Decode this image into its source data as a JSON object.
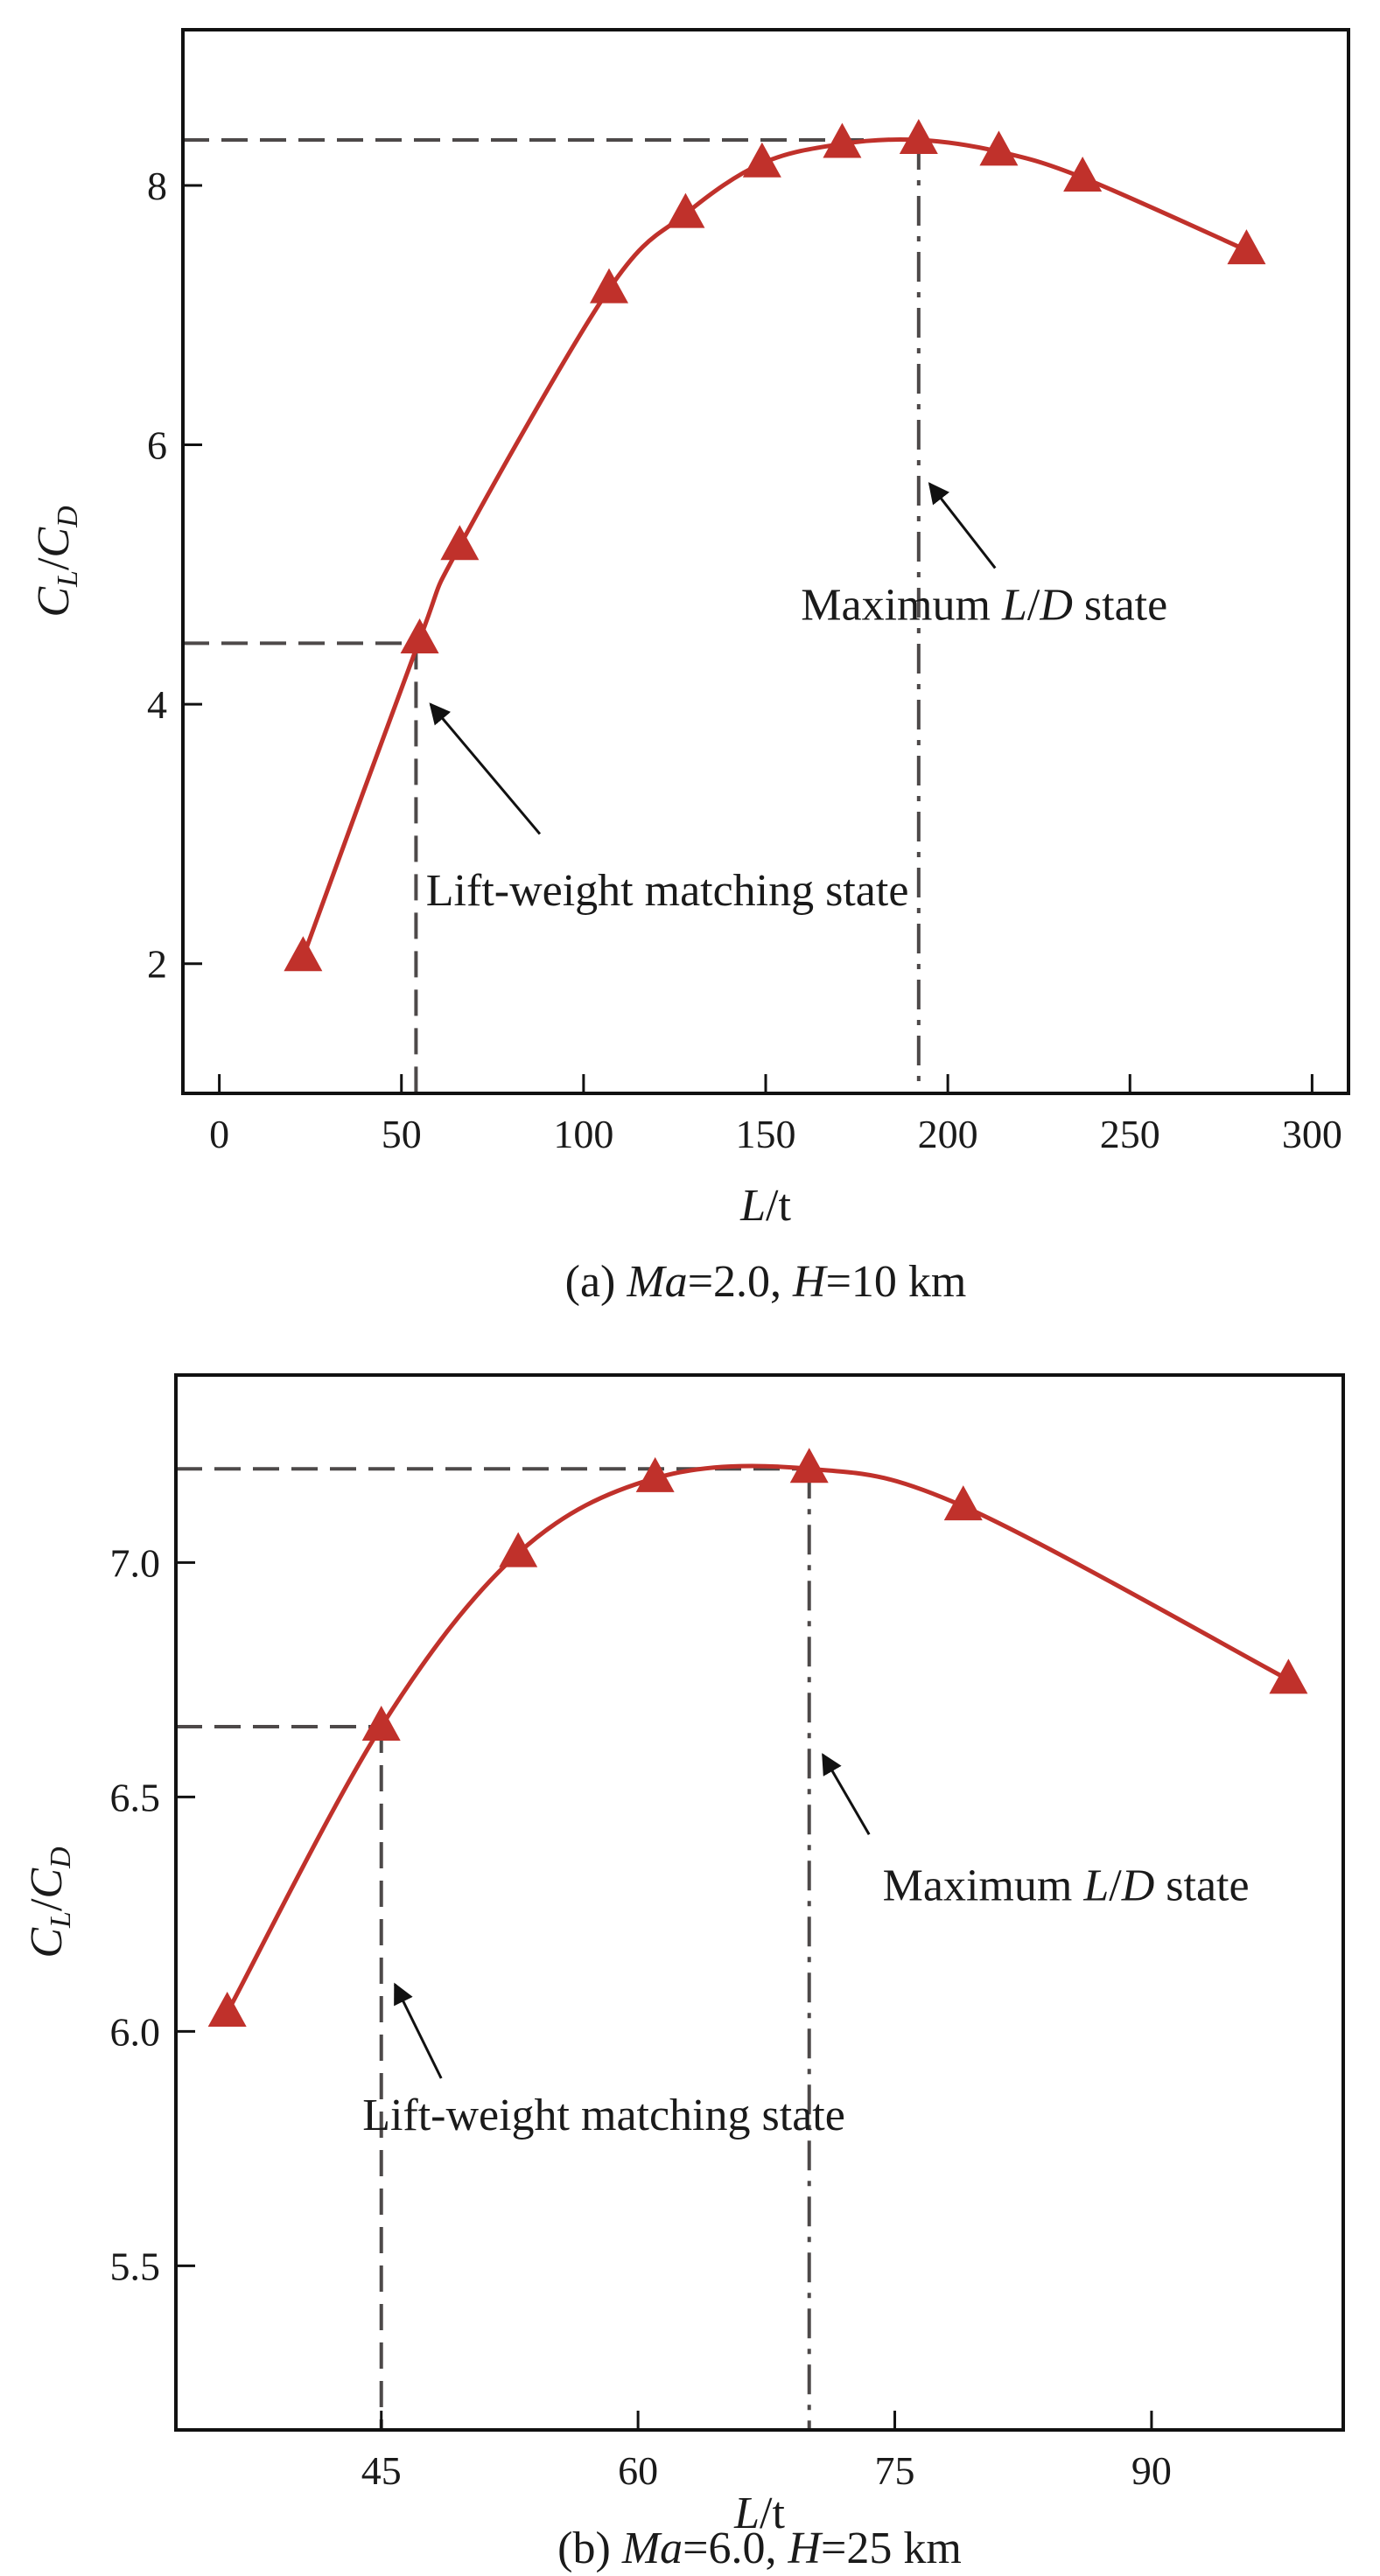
{
  "colors": {
    "series": "#c0312b",
    "guide": "#4d4949",
    "axis": "#111111"
  },
  "chart_data": [
    {
      "type": "line",
      "marker": "triangle",
      "caption": {
        "prefix": "(a) ",
        "ma": "Ma",
        "ma_val": "=2.0, ",
        "h": "H",
        "h_val": "=10 km"
      },
      "xlabel": {
        "italic": "L",
        "rest": "/t"
      },
      "ylabel": {
        "c1": "C",
        "s1": "L",
        "slash": "/",
        "c2": "C",
        "s2": "D"
      },
      "xlim": [
        -10,
        310
      ],
      "ylim": [
        1,
        9.2
      ],
      "xticks": [
        0,
        50,
        100,
        150,
        200,
        250,
        300
      ],
      "xtick_labels": [
        "0",
        "50",
        "100",
        "150",
        "200",
        "250",
        "300"
      ],
      "yticks": [
        2,
        4,
        6,
        8
      ],
      "ytick_labels": [
        "2",
        "4",
        "6",
        "8"
      ],
      "grid": false,
      "series": [
        {
          "x": [
            23,
            55,
            66,
            107,
            128,
            149,
            171,
            192,
            214,
            237,
            282
          ],
          "y": [
            2.05,
            4.5,
            5.22,
            7.2,
            7.78,
            8.17,
            8.32,
            8.35,
            8.26,
            8.06,
            7.5
          ]
        }
      ],
      "guides": [
        {
          "x": 54,
          "y": 4.47,
          "style": "dashed"
        },
        {
          "x": 192,
          "y": 8.35,
          "style": "dashdot"
        }
      ],
      "annotations": [
        {
          "text_pre": "Maximum ",
          "italic1": "L",
          "mid": "/",
          "italic2": "D",
          "text_post": " state",
          "x": 210,
          "y": 4.65,
          "arrow_from": [
            213,
            5.05
          ],
          "arrow_to": [
            195,
            5.7
          ]
        },
        {
          "text": "Lift-weight matching state",
          "x": 123,
          "y": 2.45,
          "arrow_from": [
            88,
            3.0
          ],
          "arrow_to": [
            58,
            4.0
          ]
        }
      ]
    },
    {
      "type": "line",
      "marker": "triangle",
      "caption": {
        "prefix": "(b) ",
        "ma": "Ma",
        "ma_val": "=6.0, ",
        "h": "H",
        "h_val": "=25 km"
      },
      "xlabel": {
        "italic": "L",
        "rest": "/t"
      },
      "ylabel": {
        "c1": "C",
        "s1": "L",
        "slash": "/",
        "c2": "C",
        "s2": "D"
      },
      "xlim": [
        33,
        101.2
      ],
      "ylim": [
        5.15,
        7.4
      ],
      "xticks": [
        45,
        60,
        75,
        90
      ],
      "xtick_labels": [
        "45",
        "60",
        "75",
        "90"
      ],
      "yticks": [
        5.5,
        6.0,
        6.5,
        7.0
      ],
      "ytick_labels": [
        "5.5",
        "6.0",
        "6.5",
        "7.0"
      ],
      "grid": false,
      "series": [
        {
          "x": [
            36,
            45,
            53,
            61,
            70,
            79,
            98
          ],
          "y": [
            6.04,
            6.65,
            7.02,
            7.18,
            7.2,
            7.12,
            6.75
          ]
        }
      ],
      "guides": [
        {
          "x": 45,
          "y": 6.65,
          "style": "dashed"
        },
        {
          "x": 70,
          "y": 7.2,
          "style": "dashdot"
        }
      ],
      "annotations": [
        {
          "text_pre": "Maximum ",
          "italic1": "L",
          "mid": "/",
          "italic2": "D",
          "text_post": " state",
          "x": 85,
          "y": 6.28,
          "arrow_from": [
            73.5,
            6.42
          ],
          "arrow_to": [
            70.8,
            6.59
          ]
        },
        {
          "text": "Lift-weight matching state",
          "x": 58,
          "y": 5.79,
          "arrow_from": [
            48.5,
            5.9
          ],
          "arrow_to": [
            45.8,
            6.1
          ]
        }
      ]
    }
  ]
}
